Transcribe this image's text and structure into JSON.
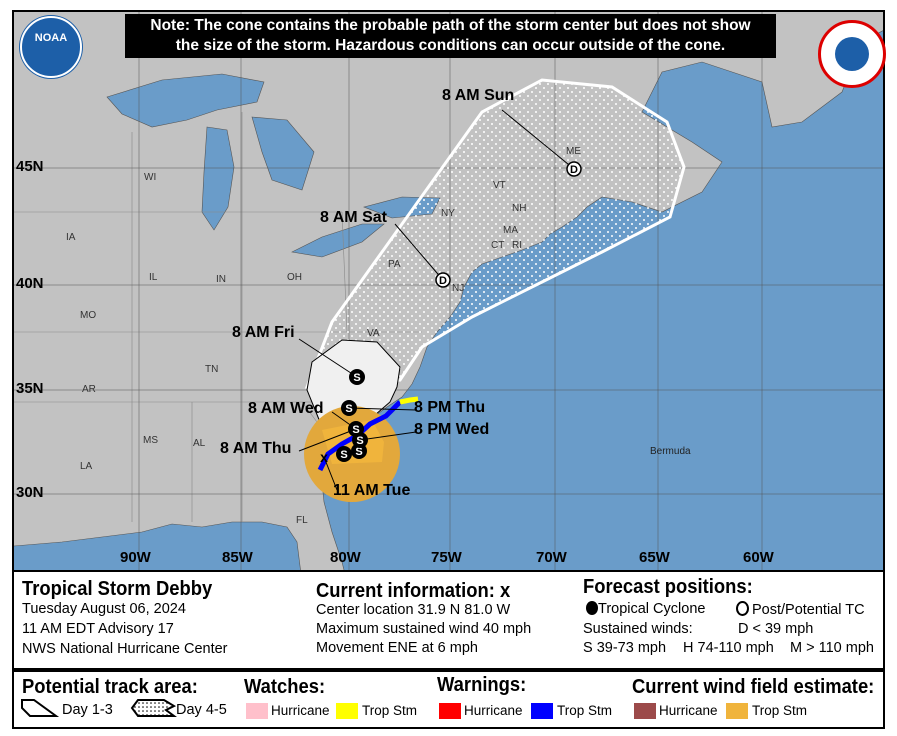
{
  "note": {
    "line1": "Note: The cone contains the probable path of the storm center but does not show",
    "line2": "the size of the storm. Hazardous conditions can occur outside of the cone."
  },
  "logos": {
    "left": "NOAA",
    "right": "NATIONAL WEATHER SERVICE"
  },
  "latitudes": [
    "45N",
    "40N",
    "35N",
    "30N"
  ],
  "longitudes": [
    "90W",
    "85W",
    "80W",
    "75W",
    "70W",
    "65W",
    "60W"
  ],
  "states": [
    "WI",
    "IA",
    "IL",
    "IN",
    "OH",
    "MO",
    "TN",
    "AR",
    "MS",
    "AL",
    "LA",
    "FL",
    "VA",
    "PA",
    "NY",
    "VT",
    "NH",
    "ME",
    "MA",
    "CT",
    "RI",
    "NJ"
  ],
  "places": {
    "bermuda": "Bermuda"
  },
  "track_labels": [
    "11 AM Tue",
    "8 AM Wed",
    "8 PM Wed",
    "8 AM Thu",
    "8 PM Thu",
    "8 AM Fri",
    "8 AM Sat",
    "8 AM Sun"
  ],
  "storm": {
    "name": "Tropical Storm Debby",
    "date": "Tuesday August 06, 2024",
    "advisory": "11 AM EDT Advisory 17",
    "center": "NWS National Hurricane Center"
  },
  "current": {
    "title": "Current information:",
    "marker": "x",
    "location": "Center location 31.9 N 81.0 W",
    "wind": "Maximum sustained wind 40 mph",
    "movement": "Movement ENE at 6 mph"
  },
  "forecast": {
    "title": "Forecast positions:",
    "tc": "Tropical Cyclone",
    "ptc": "Post/Potential TC",
    "sustained": "Sustained winds:",
    "d": "D < 39 mph",
    "s": "S 39-73 mph",
    "hh": "H 74-110 mph",
    "m": "M > 110 mph"
  },
  "legend": {
    "track_title": "Potential track area:",
    "day13": "Day 1-3",
    "day45": "Day 4-5",
    "watches": "Watches:",
    "warnings": "Warnings:",
    "wind": "Current wind field estimate:",
    "hurricane": "Hurricane",
    "tropstm": "Trop Stm"
  },
  "colors": {
    "ocean": "#6a9cc9",
    "land": "#c2c2c2",
    "hurricane_watch": "#ffc0cb",
    "ts_watch": "#ffff00",
    "hurricane_warning": "#ff0000",
    "ts_warning": "#0000ff",
    "hurricane_wind": "#9c4a4a",
    "ts_wind": "#f0b43c"
  }
}
